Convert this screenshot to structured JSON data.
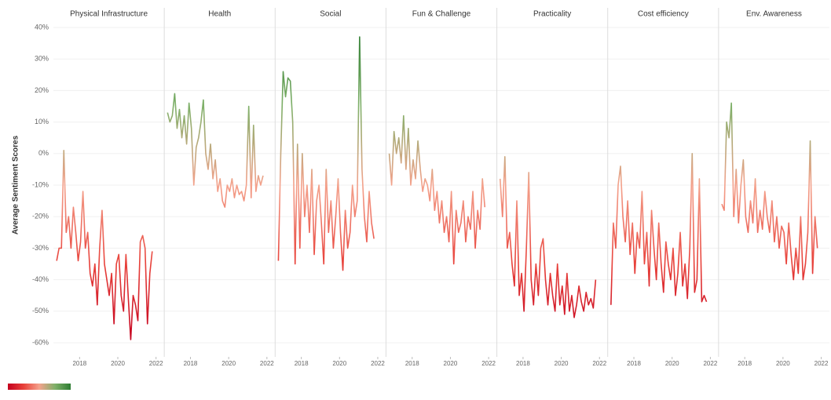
{
  "chart_data": {
    "type": "line",
    "y_label": "Average Sentiment Scores",
    "x": [
      2016.8,
      2016.925,
      2017.05,
      2017.175,
      2017.3,
      2017.425,
      2017.55,
      2017.675,
      2017.8,
      2017.925,
      2018.05,
      2018.175,
      2018.3,
      2018.425,
      2018.55,
      2018.675,
      2018.8,
      2018.925,
      2019.05,
      2019.175,
      2019.3,
      2019.425,
      2019.55,
      2019.675,
      2019.8,
      2019.925,
      2020.05,
      2020.175,
      2020.3,
      2020.425,
      2020.55,
      2020.675,
      2020.8,
      2020.925,
      2021.05,
      2021.175,
      2021.3,
      2021.425,
      2021.55,
      2021.675,
      2021.8
    ],
    "series": [
      {
        "name": "Physical Infrastructure",
        "values": [
          -34,
          -30,
          -30,
          1,
          -25,
          -20,
          -30,
          -17,
          -25,
          -34,
          -28,
          -12,
          -30,
          -25,
          -38,
          -42,
          -35,
          -48,
          -30,
          -18,
          -35,
          -40,
          -45,
          -38,
          -54,
          -35,
          -32,
          -45,
          -50,
          -32,
          -46,
          -59,
          -45,
          -48,
          -53,
          -28,
          -26,
          -30,
          -54,
          -38,
          -31
        ]
      },
      {
        "name": "Health",
        "values": [
          13,
          10,
          12,
          19,
          8,
          14,
          5,
          12,
          3,
          16,
          8,
          -10,
          2,
          5,
          10,
          17,
          0,
          -5,
          3,
          -8,
          -2,
          -12,
          -8,
          -15,
          -17,
          -10,
          -12,
          -8,
          -14,
          -10,
          -13,
          -12,
          -15,
          -10,
          15,
          -14,
          9,
          -12,
          -7,
          -10,
          -7
        ]
      },
      {
        "name": "Social",
        "values": [
          -34,
          0,
          26,
          18,
          24,
          23,
          10,
          -35,
          3,
          -30,
          0,
          -20,
          -10,
          -25,
          -5,
          -32,
          -15,
          -10,
          -22,
          -35,
          -5,
          -25,
          -15,
          -30,
          -20,
          -8,
          -25,
          -37,
          -18,
          -30,
          -25,
          -10,
          -20,
          -15,
          37,
          -5,
          -20,
          -28,
          -12,
          -22,
          -27
        ]
      },
      {
        "name": "Fun & Challenge",
        "values": [
          0,
          -10,
          7,
          0,
          5,
          -3,
          12,
          -5,
          8,
          -10,
          -2,
          -8,
          4,
          -5,
          -12,
          -8,
          -10,
          -15,
          -5,
          -18,
          -12,
          -22,
          -15,
          -25,
          -20,
          -28,
          -12,
          -35,
          -18,
          -25,
          -22,
          -15,
          -28,
          -20,
          -24,
          -12,
          -30,
          -18,
          -24,
          -8,
          -17
        ]
      },
      {
        "name": "Practicality",
        "values": [
          -8,
          -20,
          -1,
          -30,
          -25,
          -35,
          -42,
          -15,
          -45,
          -38,
          -50,
          -30,
          -6,
          -40,
          -48,
          -35,
          -45,
          -30,
          -27,
          -40,
          -48,
          -38,
          -45,
          -50,
          -35,
          -48,
          -42,
          -51,
          -38,
          -50,
          -45,
          -52,
          -48,
          -42,
          -47,
          -50,
          -44,
          -48,
          -46,
          -49,
          -40
        ]
      },
      {
        "name": "Cost efficiency",
        "values": [
          -48,
          -22,
          -30,
          -10,
          -4,
          -20,
          -28,
          -15,
          -32,
          -22,
          -38,
          -25,
          -30,
          -12,
          -35,
          -25,
          -42,
          -18,
          -30,
          -40,
          -22,
          -35,
          -44,
          -28,
          -35,
          -40,
          -30,
          -45,
          -38,
          -25,
          -42,
          -35,
          -46,
          -30,
          0,
          -44,
          -40,
          -8,
          -47,
          -45,
          -47
        ]
      },
      {
        "name": "Env. Awareness",
        "values": [
          -16,
          -18,
          10,
          5,
          16,
          -20,
          -5,
          -22,
          -10,
          -2,
          -20,
          -25,
          -15,
          -22,
          -8,
          -25,
          -18,
          -24,
          -12,
          -20,
          -25,
          -15,
          -28,
          -20,
          -30,
          -23,
          -25,
          -35,
          -22,
          -32,
          -40,
          -30,
          -38,
          -20,
          -40,
          -35,
          -25,
          4,
          -38,
          -20,
          -30
        ]
      }
    ],
    "ylim": [
      -60,
      40
    ],
    "yticks": [
      {
        "value": -60,
        "label": "-60%"
      },
      {
        "value": -50,
        "label": "-50%"
      },
      {
        "value": -40,
        "label": "-40%"
      },
      {
        "value": -30,
        "label": "-30%"
      },
      {
        "value": -20,
        "label": "-20%"
      },
      {
        "value": -10,
        "label": "-10%"
      },
      {
        "value": 0,
        "label": "0%"
      },
      {
        "value": 10,
        "label": "10%"
      },
      {
        "value": 20,
        "label": "20%"
      },
      {
        "value": 30,
        "label": "30%"
      },
      {
        "value": 40,
        "label": "40%"
      }
    ],
    "xlim": [
      2016.63,
      2022.43
    ],
    "xticks": [
      2018,
      2020,
      2022
    ],
    "colors": [
      "#c4001e",
      "#e8413a",
      "#f4a28c",
      "#7fb069",
      "#2e7d32"
    ],
    "grid": true
  }
}
